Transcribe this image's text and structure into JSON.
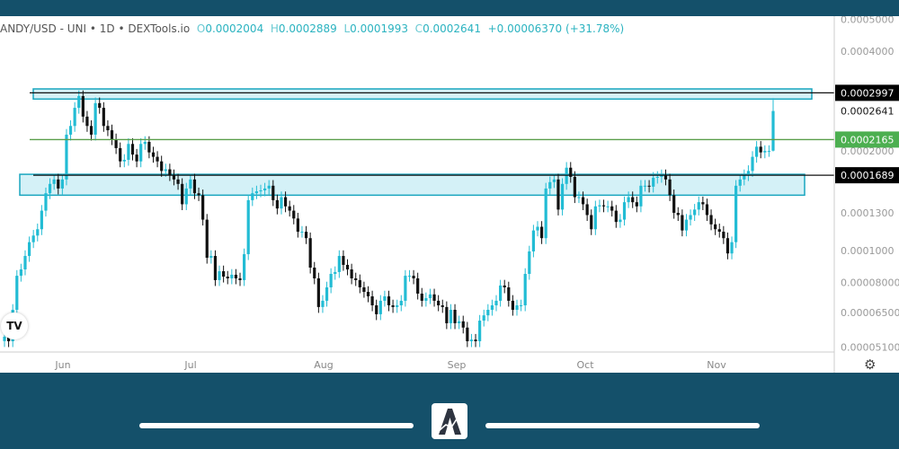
{
  "header": {
    "symbol": "ANDY/USD - UNI • 1D • DEXTools.io",
    "open_key": "O",
    "open": "0.0002004",
    "high_key": "H",
    "high": "0.0002889",
    "low_key": "L",
    "low": "0.0001993",
    "close_key": "C",
    "close": "0.0002641",
    "change": "+0.00006370 (+31.78%)"
  },
  "colors": {
    "bull": "#22bcd4",
    "bear": "#111111",
    "zone_fill": "#c9eef5",
    "zone_border": "#1aa6bf",
    "support_line": "#5a9e4b",
    "frame": "#14506a"
  },
  "chart_data": {
    "type": "candlestick",
    "scale": "log",
    "ylim": [
      4.9e-05,
      0.0005
    ],
    "y_ticks": [
      "0.0005000",
      "0.0004000",
      "0.0002000",
      "0.0001300",
      "0.0001000",
      "0.00008000",
      "0.00006500",
      "0.00005100"
    ],
    "x_ticks": [
      "Jun",
      "Jul",
      "Aug",
      "Sep",
      "Oct",
      "Nov"
    ],
    "closes": [
      5.49e-05,
      5.32e-05,
      6.62e-05,
      8.39e-05,
      8.77e-05,
      9.63e-05,
      0.000106,
      0.000111,
      0.000116,
      0.000132,
      0.000149,
      0.000159,
      0.000164,
      0.000154,
      0.000164,
      0.000224,
      0.000238,
      0.00027,
      0.000293,
      0.000254,
      0.000238,
      0.000224,
      0.000279,
      0.00027,
      0.000238,
      0.000231,
      0.000217,
      0.000204,
      0.000186,
      0.000188,
      0.00021,
      0.000195,
      0.000186,
      0.00021,
      0.000213,
      0.000198,
      0.000192,
      0.000186,
      0.000174,
      0.000176,
      0.000169,
      0.000164,
      0.000159,
      0.000138,
      0.000154,
      0.000164,
      0.000149,
      0.000147,
      0.000124,
      9.51e-05,
      9.63e-05,
      8.14e-05,
      8.66e-05,
      8.34e-05,
      8.24e-05,
      8.45e-05,
      8.24e-05,
      8.14e-05,
      9.75e-05,
      0.000142,
      0.000149,
      0.000151,
      0.000152,
      0.000154,
      0.000157,
      0.000142,
      0.000134,
      0.000145,
      0.000136,
      0.000132,
      0.000125,
      0.000114,
      0.000114,
      0.000109,
      8.88e-05,
      8.24e-05,
      6.75e-05,
      7.05e-05,
      7.74e-05,
      8.5e-05,
      8.61e-05,
      9.63e-05,
      9.05e-05,
      8.77e-05,
      8.24e-05,
      8.14e-05,
      7.74e-05,
      7.5e-05,
      7.27e-05,
      6.83e-05,
      6.42e-05,
      7.05e-05,
      7.27e-05,
      6.83e-05,
      6.75e-05,
      6.83e-05,
      7.05e-05,
      8.39e-05,
      8.39e-05,
      8.24e-05,
      7.41e-05,
      7.05e-05,
      7.18e-05,
      7.37e-05,
      7.05e-05,
      6.83e-05,
      6.75e-05,
      6.03e-05,
      6.62e-05,
      6.03e-05,
      6.11e-05,
      5.85e-05,
      5.32e-05,
      5.38e-05,
      5.32e-05,
      6.14e-05,
      6.37e-05,
      6.62e-05,
      6.83e-05,
      7.05e-05,
      7.84e-05,
      7.74e-05,
      7.05e-05,
      6.62e-05,
      6.83e-05,
      6.83e-05,
      8.5e-05,
      9.94e-05,
      0.000115,
      0.000118,
      0.000109,
      0.000154,
      0.000161,
      0.000164,
      0.000133,
      0.000159,
      0.000178,
      0.000167,
      0.000145,
      0.000145,
      0.000138,
      0.000128,
      0.000116,
      0.000136,
      0.000137,
      0.000136,
      0.000136,
      0.000132,
      0.000122,
      0.000124,
      0.00014,
      0.000145,
      0.00014,
      0.000136,
      0.000157,
      0.000157,
      0.000156,
      0.000166,
      0.000167,
      0.000169,
      0.000164,
      0.000147,
      0.00013,
      0.000128,
      0.000115,
      0.000124,
      0.000128,
      0.000133,
      0.00014,
      0.000138,
      0.000128,
      0.00012,
      0.000116,
      0.000114,
      0.000109,
      9.8e-05,
      0.000106,
      0.000157,
      0.000164,
      0.000169,
      0.000174,
      0.000192,
      0.000206,
      0.000198,
      0.0002,
      0.0002,
      0.0002004
    ],
    "last_candle": {
      "open": 0.0002004,
      "high": 0.0002889,
      "low": 0.0001993,
      "close": 0.0002641
    },
    "levels": [
      {
        "price": 0.0002997,
        "label": "0.0002997",
        "style": "black"
      },
      {
        "price": 0.0002165,
        "label": "0.0002165",
        "style": "green"
      },
      {
        "price": 0.0001689,
        "label": "0.0001689",
        "style": "black"
      }
    ],
    "last_price_label": "0.0002641",
    "zones": [
      {
        "top": 0.000308,
        "bottom": 0.000287
      },
      {
        "top": 0.00017,
        "bottom": 0.000147
      }
    ]
  },
  "footer": {
    "logo": "A"
  },
  "tv_logo": "TV"
}
